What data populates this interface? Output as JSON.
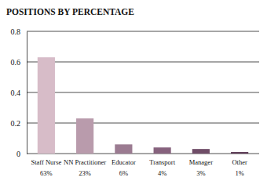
{
  "chart_data": {
    "type": "bar",
    "title": "POSITIONS BY PERCENTAGE",
    "categories": [
      "Staff Nurse",
      "NN Practitioner",
      "Educator",
      "Transport",
      "Manager",
      "Other"
    ],
    "values": [
      0.63,
      0.23,
      0.06,
      0.04,
      0.03,
      0.01
    ],
    "value_labels": [
      "63%",
      "23%",
      "6%",
      "4%",
      "3%",
      "1%"
    ],
    "data_labels": true,
    "colors": [
      "#d7bcc8",
      "#b99bac",
      "#9b7b91",
      "#86627d",
      "#6f4d67",
      "#5b3853"
    ],
    "ylim": [
      0,
      0.8
    ],
    "yticks": [
      0,
      0.2,
      0.4,
      0.6,
      0.8
    ],
    "grid": true
  }
}
